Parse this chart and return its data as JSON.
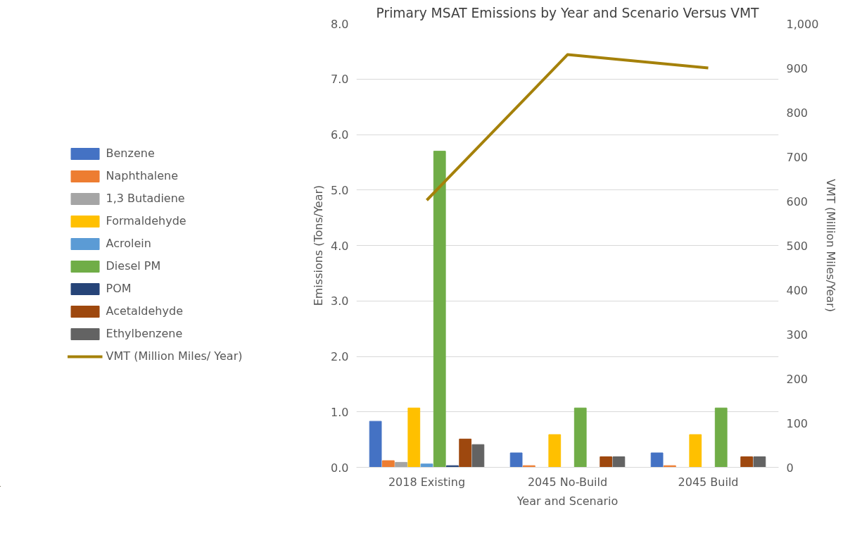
{
  "chart_data": {
    "type": "bar",
    "title": "Primary MSAT Emissions by Year and Scenario Versus VMT",
    "xlabel": "Year and Scenario",
    "ylabel": "Emissions (Tons/Year)",
    "y2label": "VMT (Million Miles/Year)",
    "categories": [
      "2018 Existing",
      "2045 No-Build",
      "2045 Build"
    ],
    "ylim": [
      0,
      8
    ],
    "yticks": [
      {
        "value": 0,
        "label": "0.0"
      },
      {
        "value": 1,
        "label": "1.0"
      },
      {
        "value": 2,
        "label": "2.0"
      },
      {
        "value": 3,
        "label": "3.0"
      },
      {
        "value": 4,
        "label": "4.0"
      },
      {
        "value": 5,
        "label": "5.0"
      },
      {
        "value": 6,
        "label": "6.0"
      },
      {
        "value": 7,
        "label": "7.0"
      },
      {
        "value": 8,
        "label": "8.0"
      }
    ],
    "y2lim": [
      0,
      1000
    ],
    "y2ticks": [
      0,
      100,
      200,
      300,
      400,
      500,
      600,
      700,
      800,
      900,
      {
        "value": 1000,
        "label": "1,000"
      }
    ],
    "grid": "y",
    "legend": "left",
    "series": [
      {
        "name": "Benzene",
        "color": "#4472c4",
        "values": [
          0.83,
          0.26,
          0.26
        ]
      },
      {
        "name": "Naphthalene",
        "color": "#ed7d31",
        "values": [
          0.12,
          0.03,
          0.03
        ]
      },
      {
        "name": "1,3 Butadiene",
        "color": "#a5a5a5",
        "values": [
          0.09,
          0,
          0
        ]
      },
      {
        "name": "Formaldehyde",
        "color": "#ffc000",
        "values": [
          1.07,
          0.59,
          0.59
        ]
      },
      {
        "name": "Acrolein",
        "color": "#5b9bd5",
        "values": [
          0.06,
          0,
          0
        ]
      },
      {
        "name": "Diesel PM",
        "color": "#70ad47",
        "values": [
          5.7,
          1.07,
          1.07
        ]
      },
      {
        "name": "POM",
        "color": "#264478",
        "values": [
          0.03,
          0,
          0
        ]
      },
      {
        "name": "Acetaldehyde",
        "color": "#9e480e",
        "values": [
          0.51,
          0.19,
          0.19
        ]
      },
      {
        "name": "Ethylbenzene",
        "color": "#636363",
        "values": [
          0.41,
          0.19,
          0.19
        ]
      },
      {
        "name": "VMT (Million Miles/ Year)",
        "color": "#a5810a",
        "type": "line",
        "axis": "y2",
        "values": [
          602,
          930,
          900
        ]
      }
    ]
  }
}
